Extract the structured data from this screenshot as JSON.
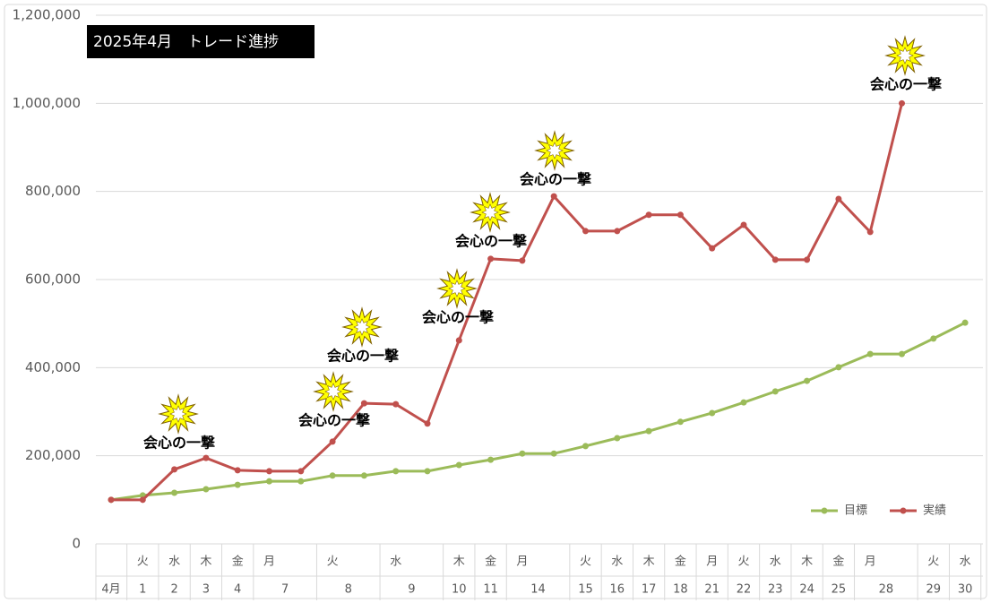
{
  "chart_data": {
    "type": "line",
    "title": "2025年4月　トレード進捗",
    "categories": [
      "4月",
      "1",
      "2",
      "3",
      "4",
      "7",
      null,
      "8",
      null,
      "9",
      null,
      "10",
      "11",
      "14",
      null,
      "15",
      "16",
      "17",
      "18",
      "21",
      "22",
      "23",
      "24",
      "25",
      "28",
      null,
      "29",
      "30"
    ],
    "weekdays": [
      null,
      "火",
      "水",
      "木",
      "金",
      "月",
      null,
      "火",
      null,
      "水",
      null,
      "木",
      "金",
      "月",
      null,
      "火",
      "水",
      "木",
      "金",
      "月",
      "火",
      "水",
      "木",
      "金",
      "月",
      null,
      "火",
      "水"
    ],
    "series": [
      {
        "name": "目標",
        "color": "#9bbb59",
        "values": [
          100000,
          110000,
          116000,
          124000,
          134000,
          142000,
          142000,
          155000,
          155000,
          165000,
          165000,
          179000,
          191000,
          205000,
          205000,
          222000,
          240000,
          256000,
          277000,
          297000,
          321000,
          346000,
          370000,
          401000,
          431000,
          431000,
          466000,
          502000
        ]
      },
      {
        "name": "実績",
        "color": "#c0504d",
        "values": [
          100000,
          100000,
          169000,
          195000,
          167000,
          165000,
          165000,
          232000,
          319000,
          317000,
          273000,
          462000,
          647000,
          643000,
          789000,
          710000,
          710000,
          747000,
          747000,
          671000,
          724000,
          645000,
          645000,
          783000,
          708000,
          1000000,
          null,
          null
        ]
      }
    ],
    "annotations": [
      "会心の一撃",
      "会心の一撃",
      "会心の一撃",
      "会心の一撃",
      "会心の一撃",
      "会心の一撃",
      "会心の一撃"
    ],
    "ylim": [
      0,
      1200000
    ],
    "yticks": [
      0,
      {
        "value": 200000,
        "label": "200,000"
      },
      {
        "value": 400000,
        "label": "400,000"
      },
      {
        "value": 600000,
        "label": "600,000"
      },
      {
        "value": 800000,
        "label": "800,000"
      },
      {
        "value": 1000000,
        "label": "1,000,000"
      },
      {
        "value": 1200000,
        "label": "1,200,000"
      }
    ],
    "grid": true,
    "legend": "bottom-right"
  }
}
